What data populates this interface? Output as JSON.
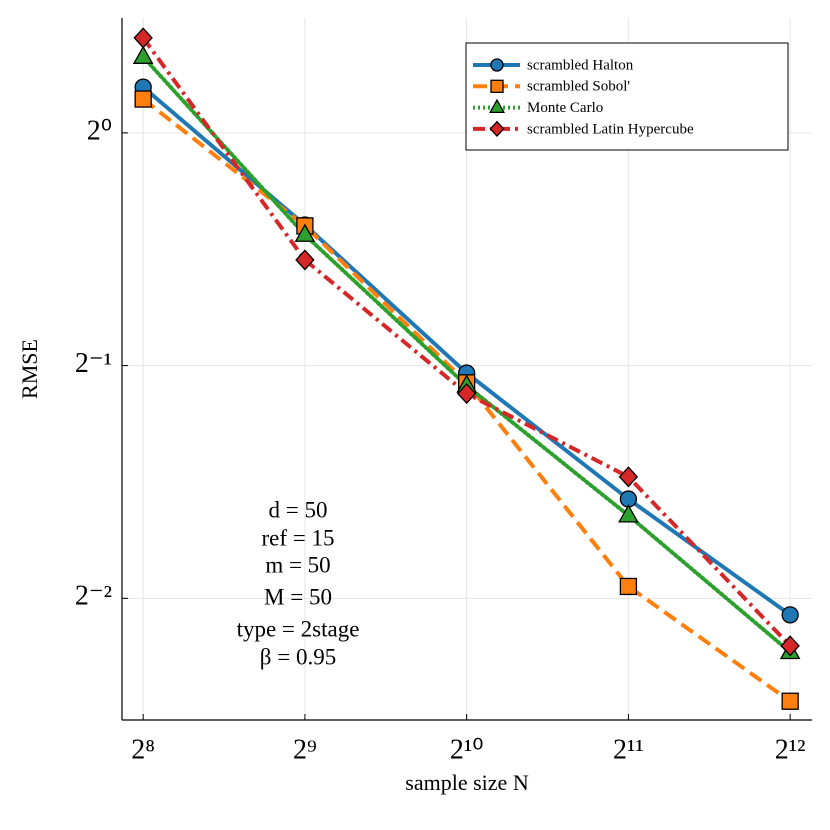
{
  "chart_data": {
    "type": "line",
    "xlabel": "sample size N",
    "ylabel": "RMSE",
    "xscale": "log2",
    "yscale": "log2",
    "grid": true,
    "legend": "upper right",
    "x": [
      256,
      512,
      1024,
      2048,
      4096
    ],
    "xlim": [
      233.8,
      4498
    ],
    "ylim": [
      0.174,
      1.408
    ],
    "xticks": [
      {
        "value": 256,
        "label": "2⁸"
      },
      {
        "value": 512,
        "label": "2⁹"
      },
      {
        "value": 1024,
        "label": "2¹⁰"
      },
      {
        "value": 2048,
        "label": "2¹¹"
      },
      {
        "value": 4096,
        "label": "2¹²"
      }
    ],
    "yticks": [
      {
        "value": 0.25,
        "label": "2⁻²"
      },
      {
        "value": 0.5,
        "label": "2⁻¹"
      },
      {
        "value": 1,
        "label": "2⁰"
      }
    ],
    "series": [
      {
        "name": "scrambled Halton",
        "color": "#1f77b4",
        "dash": "solid",
        "marker": "circle",
        "values": [
          1.146,
          0.76,
          0.489,
          0.336,
          0.238
        ]
      },
      {
        "name": "scrambled Sobol'",
        "color": "#ff7f0e",
        "dash": "dashed",
        "marker": "square",
        "values": [
          1.106,
          0.758,
          0.475,
          0.259,
          0.184
        ]
      },
      {
        "name": "Monte Carlo",
        "color": "#2ca02c",
        "dash": "dotted",
        "marker": "triangle",
        "values": [
          1.254,
          0.738,
          0.471,
          0.32,
          0.213
        ]
      },
      {
        "name": "scrambled Latin Hypercube",
        "color": "#d62728",
        "dash": "dashdot",
        "marker": "diamond",
        "values": [
          1.327,
          0.685,
          0.46,
          0.359,
          0.217
        ]
      }
    ],
    "annotations": [
      "d = 50",
      "ref = 15",
      "m = 50",
      "M = 50",
      "type = 2stage",
      "β = 0.95"
    ]
  }
}
